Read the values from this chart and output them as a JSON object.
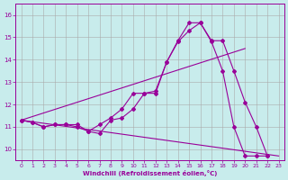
{
  "xlabel": "Windchill (Refroidissement éolien,°C)",
  "bg_color": "#c8ecec",
  "line_color": "#990099",
  "grid_color": "#aaaaaa",
  "xlim": [
    -0.5,
    23.5
  ],
  "ylim": [
    9.5,
    16.5
  ],
  "xticks": [
    0,
    1,
    2,
    3,
    4,
    5,
    6,
    7,
    8,
    9,
    10,
    11,
    12,
    13,
    14,
    15,
    16,
    17,
    18,
    19,
    20,
    21,
    22,
    23
  ],
  "yticks": [
    10,
    11,
    12,
    13,
    14,
    15,
    16
  ],
  "line1_x": [
    0,
    1,
    2,
    3,
    4,
    5,
    6,
    7,
    8,
    9,
    10,
    11,
    12,
    13,
    14,
    15,
    16,
    17,
    18,
    19,
    20,
    21,
    22
  ],
  "line1_y": [
    11.3,
    11.2,
    11.0,
    11.1,
    11.1,
    11.1,
    10.8,
    10.7,
    11.3,
    11.4,
    11.8,
    12.5,
    12.6,
    13.9,
    14.8,
    15.3,
    15.65,
    14.8,
    13.5,
    11.0,
    9.7,
    9.7,
    9.7
  ],
  "line2_x": [
    0,
    1,
    2,
    3,
    4,
    5,
    6,
    7,
    8,
    9,
    10,
    11,
    12,
    13,
    14,
    15,
    16,
    17,
    18,
    19,
    20,
    21,
    22
  ],
  "line2_y": [
    11.3,
    11.2,
    11.0,
    11.1,
    11.1,
    11.0,
    10.8,
    11.1,
    11.4,
    11.8,
    12.5,
    12.5,
    12.5,
    13.9,
    14.85,
    15.65,
    15.65,
    14.85,
    14.85,
    13.5,
    12.1,
    11.0,
    9.7
  ],
  "line3_x": [
    0,
    23
  ],
  "line3_y": [
    11.3,
    9.7
  ],
  "line4_x": [
    0,
    20
  ],
  "line4_y": [
    11.3,
    14.5
  ]
}
